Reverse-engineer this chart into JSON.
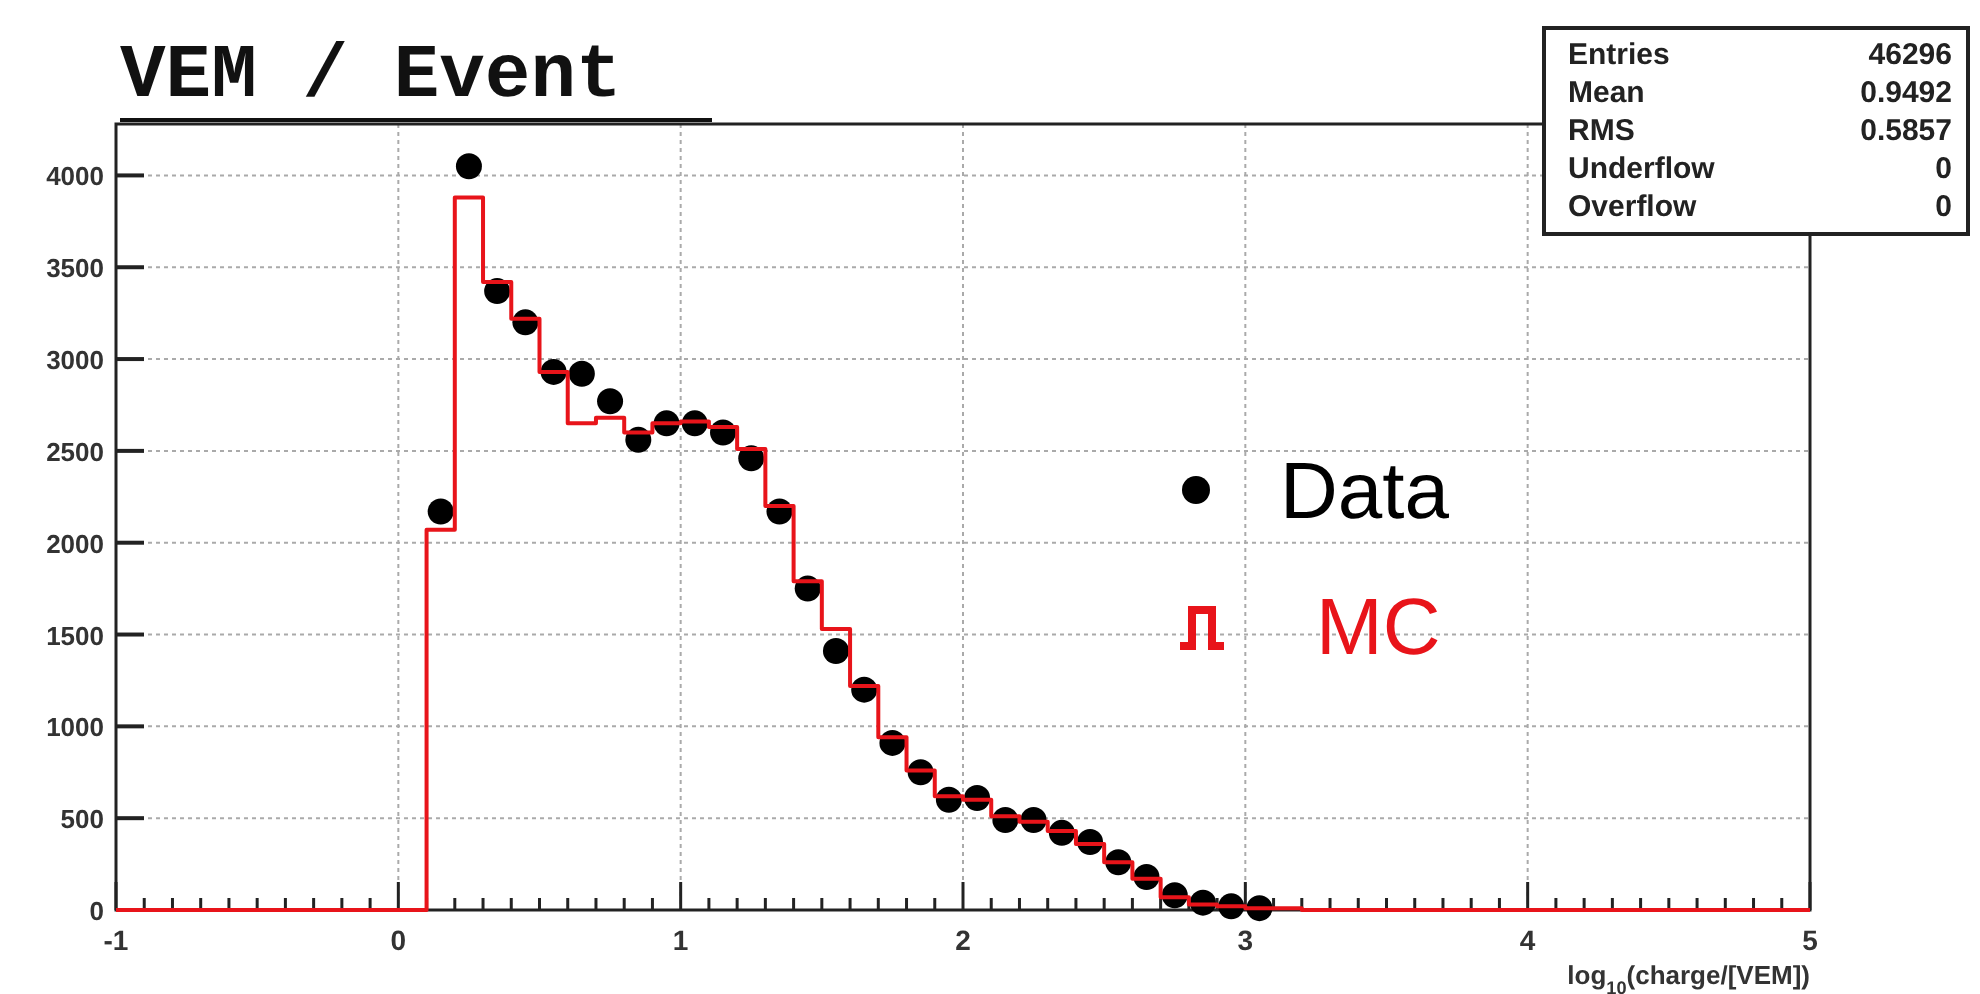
{
  "chart_data": {
    "type": "histogram",
    "title": "VEM / Event",
    "xlabel": "log$_{10}$(charge/[VEM])",
    "bins": [
      -1,
      0.1,
      0.2,
      0.3,
      0.4,
      0.5,
      0.6,
      0.7,
      0.8,
      0.9,
      1.0,
      1.1,
      1.2,
      1.3,
      1.4,
      1.5,
      1.6,
      1.7,
      1.8,
      1.9,
      2.0,
      2.1,
      2.2,
      2.3,
      2.4,
      2.5,
      2.6,
      2.7,
      2.8,
      2.9,
      3.0,
      3.1,
      3.2,
      5
    ],
    "series": [
      {
        "name": "Data",
        "type": "scatter",
        "color": "#000000",
        "x": [
          0.15,
          0.25,
          0.35,
          0.45,
          0.55,
          0.65,
          0.75,
          0.85,
          0.95,
          1.05,
          1.15,
          1.25,
          1.35,
          1.45,
          1.55,
          1.65,
          1.75,
          1.85,
          1.95,
          2.05,
          2.15,
          2.25,
          2.35,
          2.45,
          2.55,
          2.65,
          2.75,
          2.85,
          2.95,
          3.05
        ],
        "values": [
          2170,
          4050,
          3370,
          3200,
          2930,
          2920,
          2770,
          2560,
          2650,
          2650,
          2600,
          2460,
          2170,
          1750,
          1410,
          1200,
          910,
          750,
          600,
          610,
          490,
          490,
          420,
          370,
          260,
          180,
          80,
          40,
          20,
          10
        ]
      },
      {
        "name": "MC",
        "color": "#e8141a",
        "values": [
          0,
          2070,
          3880,
          3420,
          3220,
          2930,
          2650,
          2680,
          2600,
          2650,
          2660,
          2630,
          2510,
          2200,
          1790,
          1530,
          1220,
          940,
          760,
          620,
          600,
          510,
          480,
          430,
          360,
          260,
          170,
          70,
          30,
          20,
          10,
          10,
          0
        ]
      }
    ],
    "xlim": [
      -1,
      5
    ],
    "xticks": [
      -1,
      0,
      1,
      2,
      3,
      4,
      5
    ],
    "ylim": [
      0,
      4280
    ],
    "yticks": [
      0,
      500,
      1000,
      1500,
      2000,
      2500,
      3000,
      3500,
      4000
    ],
    "grid": true,
    "legend": "right",
    "marker": "circle",
    "annotations": [
      "Entries",
      "46296",
      "Mean",
      "0.9492",
      "RMS",
      "0.5857",
      "Underflow",
      "0",
      "Overflow",
      "0"
    ]
  }
}
